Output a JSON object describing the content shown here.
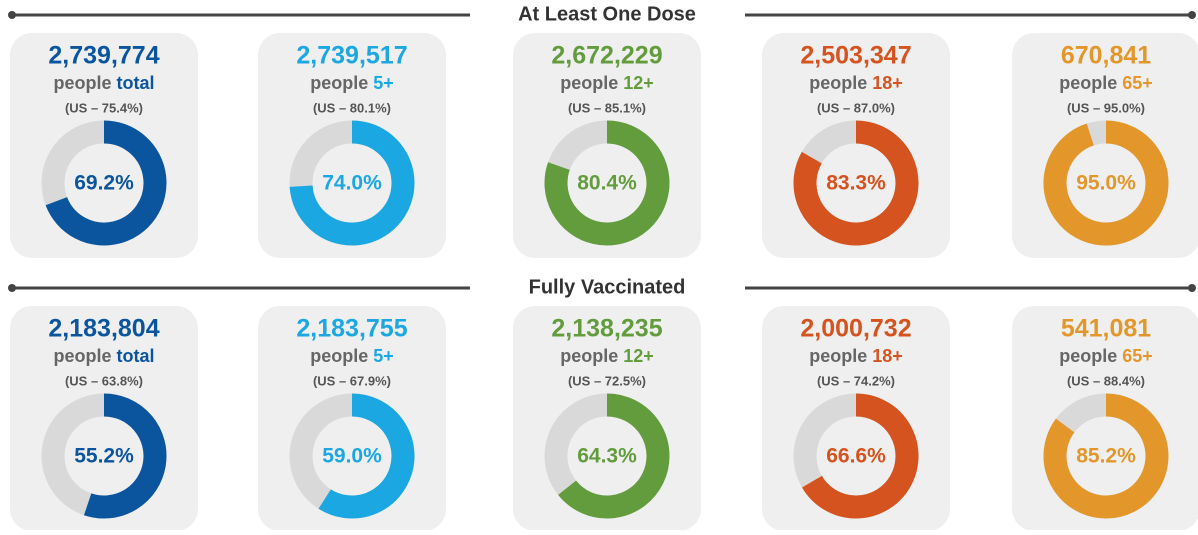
{
  "sections": [
    {
      "title": "At Least One Dose",
      "cards": [
        {
          "count": "2,739,774",
          "label": "people",
          "group": "total",
          "us": "(US – 75.4%)",
          "percent": 69.2,
          "percent_label": "69.2%",
          "color": "#0b559f"
        },
        {
          "count": "2,739,517",
          "label": "people",
          "group": "5+",
          "us": "(US – 80.1%)",
          "percent": 74.0,
          "percent_label": "74.0%",
          "color": "#1ba7e1"
        },
        {
          "count": "2,672,229",
          "label": "people",
          "group": "12+",
          "us": "(US – 85.1%)",
          "percent": 80.4,
          "percent_label": "80.4%",
          "color": "#629c3d"
        },
        {
          "count": "2,503,347",
          "label": "people",
          "group": "18+",
          "us": "(US – 87.0%)",
          "percent": 83.3,
          "percent_label": "83.3%",
          "color": "#d4531f"
        },
        {
          "count": "670,841",
          "label": "people",
          "group": "65+",
          "us": "(US – 95.0%)",
          "percent": 95.0,
          "percent_label": "95.0%",
          "color": "#e3972b"
        }
      ]
    },
    {
      "title": "Fully Vaccinated",
      "cards": [
        {
          "count": "2,183,804",
          "label": "people",
          "group": "total",
          "us": "(US – 63.8%)",
          "percent": 55.2,
          "percent_label": "55.2%",
          "color": "#0b559f"
        },
        {
          "count": "2,183,755",
          "label": "people",
          "group": "5+",
          "us": "(US – 67.9%)",
          "percent": 59.0,
          "percent_label": "59.0%",
          "color": "#1ba7e1"
        },
        {
          "count": "2,138,235",
          "label": "people",
          "group": "12+",
          "us": "(US – 72.5%)",
          "percent": 64.3,
          "percent_label": "64.3%",
          "color": "#629c3d"
        },
        {
          "count": "2,000,732",
          "label": "people",
          "group": "18+",
          "us": "(US – 74.2%)",
          "percent": 66.6,
          "percent_label": "66.6%",
          "color": "#d4531f"
        },
        {
          "count": "541,081",
          "label": "people",
          "group": "65+",
          "us": "(US – 88.4%)",
          "percent": 85.2,
          "percent_label": "85.2%",
          "color": "#e3972b"
        }
      ]
    }
  ]
}
